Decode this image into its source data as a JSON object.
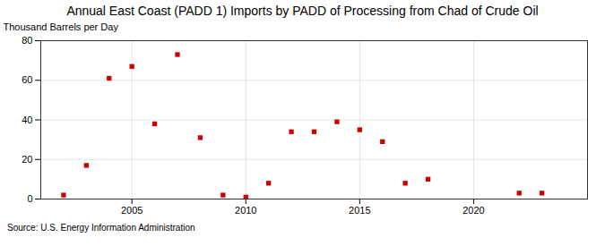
{
  "chart_data": {
    "type": "scatter",
    "title": "Annual East Coast (PADD 1) Imports by PADD of Processing from Chad of Crude Oil",
    "ylabel": "Thousand Barrels per Day",
    "source": "Source: U.S. Energy Information Administration",
    "x": [
      2002,
      2003,
      2004,
      2005,
      2006,
      2007,
      2008,
      2009,
      2010,
      2011,
      2012,
      2013,
      2014,
      2015,
      2016,
      2017,
      2018,
      2022,
      2023
    ],
    "values": [
      2,
      17,
      61,
      67,
      38,
      73,
      31,
      2,
      1,
      8,
      34,
      34,
      39,
      35,
      29,
      8,
      10,
      3,
      3
    ],
    "color": "#cc0000",
    "marker": "square",
    "xlim": [
      2001,
      2025
    ],
    "ylim": [
      0,
      80
    ],
    "xticks": [
      2005,
      2010,
      2015,
      2020
    ],
    "yticks": [
      0,
      20,
      40,
      60,
      80
    ],
    "grid": true
  }
}
